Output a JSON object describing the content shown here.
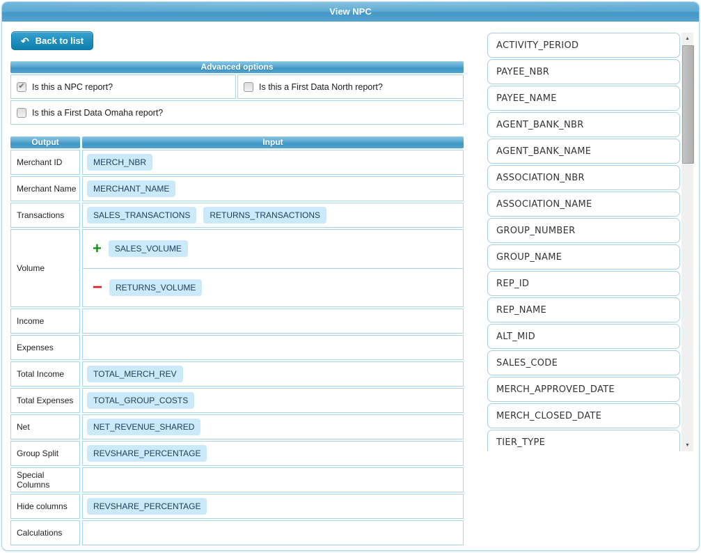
{
  "window": {
    "title": "View NPC"
  },
  "toolbar": {
    "back_label": "Back to list",
    "back_icon": "↶"
  },
  "advanced_options": {
    "title": "Advanced options",
    "checkboxes": [
      {
        "label": "Is this a NPC report?",
        "checked": true
      },
      {
        "label": "Is this a First Data North report?",
        "checked": false
      },
      {
        "label": "Is this a First Data Omaha report?",
        "checked": false
      }
    ]
  },
  "mapping_table": {
    "output_header": "Output",
    "input_header": "Input",
    "rows": [
      {
        "label": "Merchant ID",
        "tags": [
          "MERCH_NBR"
        ]
      },
      {
        "label": "Merchant Name",
        "tags": [
          "MERCHANT_NAME"
        ]
      },
      {
        "label": "Transactions",
        "tags": [
          "SALES_TRANSACTIONS",
          "RETURNS_TRANSACTIONS"
        ]
      },
      {
        "label": "Volume",
        "subrows": [
          {
            "op": "+",
            "tags": [
              "SALES_VOLUME"
            ]
          },
          {
            "op": "-",
            "tags": [
              "RETURNS_VOLUME"
            ]
          }
        ]
      },
      {
        "label": "Income",
        "tags": []
      },
      {
        "label": "Expenses",
        "tags": []
      },
      {
        "label": "Total Income",
        "tags": [
          "TOTAL_MERCH_REV"
        ]
      },
      {
        "label": "Total Expenses",
        "tags": [
          "TOTAL_GROUP_COSTS"
        ]
      },
      {
        "label": "Net",
        "tags": [
          "NET_REVENUE_SHARED"
        ]
      },
      {
        "label": "Group Split",
        "tags": [
          "REVSHARE_PERCENTAGE"
        ]
      },
      {
        "label": "Special Columns",
        "tags": []
      },
      {
        "label": "Hide columns",
        "tags": [
          "REVSHARE_PERCENTAGE"
        ]
      },
      {
        "label": "Calculations",
        "tags": []
      }
    ]
  },
  "field_list": {
    "items": [
      "ACTIVITY_PERIOD",
      "PAYEE_NBR",
      "PAYEE_NAME",
      "AGENT_BANK_NBR",
      "AGENT_BANK_NAME",
      "ASSOCIATION_NBR",
      "ASSOCIATION_NAME",
      "GROUP_NUMBER",
      "GROUP_NAME",
      "REP_ID",
      "REP_NAME",
      "ALT_MID",
      "SALES_CODE",
      "MERCH_APPROVED_DATE",
      "MERCH_CLOSED_DATE",
      "TIER_TYPE"
    ],
    "scrollbar": {
      "up_icon": "▲",
      "down_icon": "▼"
    }
  },
  "icons": {
    "checkmark": "✔"
  },
  "colors": {
    "accent_blue": "#4a9cc9",
    "border_blue": "#a9d5ec",
    "tag_background": "#cbe9f9",
    "tag_text": "#1c415c",
    "plus_green": "#1b8c1b",
    "minus_red": "#e31a1a",
    "button_blue": "#1f8fbe"
  }
}
